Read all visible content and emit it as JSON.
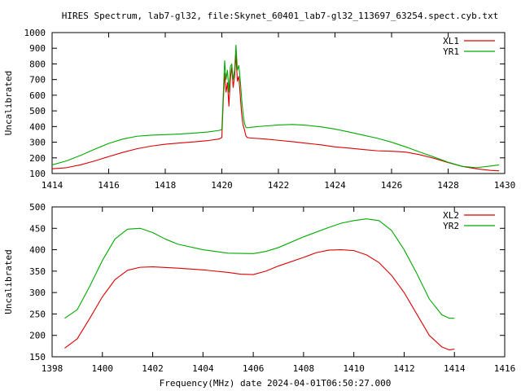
{
  "title": "HIRES Spectrum, lab7-gl32, file:Skynet_60401_lab7-gl32_113697_63254.spect.cyb.txt",
  "footer_label": "Frequency(MHz) date 2024-04-01T06:50:27.000",
  "colors": {
    "red": "#dd0000",
    "green": "#00aa00",
    "axis": "#000000"
  },
  "chart_data": [
    {
      "type": "line",
      "ylabel": "Uncalibrated",
      "xlim": [
        1414,
        1430
      ],
      "ylim": [
        100,
        1000
      ],
      "x_ticks": [
        "1414",
        "1416",
        "1418",
        "1420",
        "1422",
        "1424",
        "1426",
        "1428",
        "1430"
      ],
      "y_ticks": [
        "100",
        "200",
        "300",
        "400",
        "500",
        "600",
        "700",
        "800",
        "900",
        "1000"
      ],
      "legend_position": "top-right",
      "series": [
        {
          "name": "XL1",
          "color": "red",
          "points": [
            [
              1414.0,
              130
            ],
            [
              1414.5,
              137
            ],
            [
              1415.0,
              155
            ],
            [
              1415.5,
              180
            ],
            [
              1416.0,
              208
            ],
            [
              1416.5,
              235
            ],
            [
              1417.0,
              258
            ],
            [
              1417.5,
              275
            ],
            [
              1418.0,
              287
            ],
            [
              1418.5,
              295
            ],
            [
              1419.0,
              302
            ],
            [
              1419.5,
              310
            ],
            [
              1419.9,
              320
            ],
            [
              1420.0,
              330
            ],
            [
              1420.05,
              560
            ],
            [
              1420.1,
              740
            ],
            [
              1420.15,
              620
            ],
            [
              1420.2,
              680
            ],
            [
              1420.25,
              530
            ],
            [
              1420.3,
              700
            ],
            [
              1420.35,
              780
            ],
            [
              1420.4,
              650
            ],
            [
              1420.45,
              720
            ],
            [
              1420.5,
              860
            ],
            [
              1420.55,
              690
            ],
            [
              1420.6,
              720
            ],
            [
              1420.65,
              600
            ],
            [
              1420.7,
              480
            ],
            [
              1420.75,
              410
            ],
            [
              1420.8,
              380
            ],
            [
              1420.85,
              340
            ],
            [
              1420.9,
              330
            ],
            [
              1421.0,
              327
            ],
            [
              1421.5,
              321
            ],
            [
              1422.0,
              312
            ],
            [
              1422.5,
              303
            ],
            [
              1423.0,
              293
            ],
            [
              1423.5,
              283
            ],
            [
              1424.0,
              270
            ],
            [
              1424.5,
              262
            ],
            [
              1425.0,
              253
            ],
            [
              1425.5,
              245
            ],
            [
              1426.0,
              242
            ],
            [
              1426.5,
              237
            ],
            [
              1427.0,
              220
            ],
            [
              1427.5,
              197
            ],
            [
              1428.0,
              170
            ],
            [
              1428.5,
              145
            ],
            [
              1429.0,
              130
            ],
            [
              1429.5,
              120
            ],
            [
              1429.8,
              117
            ]
          ]
        },
        {
          "name": "YR1",
          "color": "green",
          "points": [
            [
              1414.0,
              155
            ],
            [
              1414.5,
              180
            ],
            [
              1415.0,
              215
            ],
            [
              1415.5,
              255
            ],
            [
              1416.0,
              292
            ],
            [
              1416.5,
              320
            ],
            [
              1417.0,
              338
            ],
            [
              1417.5,
              345
            ],
            [
              1418.0,
              348
            ],
            [
              1418.5,
              352
            ],
            [
              1419.0,
              358
            ],
            [
              1419.5,
              365
            ],
            [
              1419.9,
              375
            ],
            [
              1420.0,
              380
            ],
            [
              1420.05,
              600
            ],
            [
              1420.1,
              820
            ],
            [
              1420.15,
              700
            ],
            [
              1420.2,
              760
            ],
            [
              1420.25,
              620
            ],
            [
              1420.3,
              780
            ],
            [
              1420.35,
              800
            ],
            [
              1420.4,
              700
            ],
            [
              1420.45,
              760
            ],
            [
              1420.5,
              920
            ],
            [
              1420.55,
              760
            ],
            [
              1420.6,
              790
            ],
            [
              1420.65,
              700
            ],
            [
              1420.7,
              580
            ],
            [
              1420.75,
              480
            ],
            [
              1420.8,
              420
            ],
            [
              1420.85,
              395
            ],
            [
              1420.9,
              392
            ],
            [
              1421.0,
              395
            ],
            [
              1421.5,
              403
            ],
            [
              1422.0,
              410
            ],
            [
              1422.5,
              413
            ],
            [
              1423.0,
              408
            ],
            [
              1423.5,
              398
            ],
            [
              1424.0,
              384
            ],
            [
              1424.5,
              365
            ],
            [
              1425.0,
              345
            ],
            [
              1425.5,
              325
            ],
            [
              1426.0,
              300
            ],
            [
              1426.5,
              270
            ],
            [
              1427.0,
              237
            ],
            [
              1427.5,
              205
            ],
            [
              1428.0,
              172
            ],
            [
              1428.5,
              146
            ],
            [
              1429.0,
              137
            ],
            [
              1429.5,
              148
            ],
            [
              1429.8,
              155
            ]
          ]
        }
      ]
    },
    {
      "type": "line",
      "ylabel": "Uncalibrated",
      "xlim": [
        1398,
        1416
      ],
      "ylim": [
        150,
        500
      ],
      "x_ticks": [
        "1398",
        "1400",
        "1402",
        "1404",
        "1406",
        "1408",
        "1410",
        "1412",
        "1414",
        "1416"
      ],
      "y_ticks": [
        "150",
        "200",
        "250",
        "300",
        "350",
        "400",
        "450",
        "500"
      ],
      "legend_position": "top-right",
      "series": [
        {
          "name": "XL2",
          "color": "red",
          "points": [
            [
              1398.5,
              170
            ],
            [
              1399.0,
              192
            ],
            [
              1399.5,
              240
            ],
            [
              1400.0,
              290
            ],
            [
              1400.5,
              330
            ],
            [
              1401.0,
              352
            ],
            [
              1401.5,
              359
            ],
            [
              1402.0,
              360
            ],
            [
              1403.0,
              357
            ],
            [
              1404.0,
              353
            ],
            [
              1405.0,
              347
            ],
            [
              1405.5,
              343
            ],
            [
              1406.0,
              342
            ],
            [
              1406.5,
              350
            ],
            [
              1407.0,
              362
            ],
            [
              1408.0,
              382
            ],
            [
              1408.5,
              393
            ],
            [
              1409.0,
              399
            ],
            [
              1409.5,
              400
            ],
            [
              1410.0,
              398
            ],
            [
              1410.5,
              388
            ],
            [
              1411.0,
              370
            ],
            [
              1411.5,
              340
            ],
            [
              1412.0,
              300
            ],
            [
              1412.5,
              250
            ],
            [
              1413.0,
              200
            ],
            [
              1413.5,
              173
            ],
            [
              1413.8,
              166
            ],
            [
              1414.0,
              168
            ]
          ]
        },
        {
          "name": "YR2",
          "color": "green",
          "points": [
            [
              1398.5,
              240
            ],
            [
              1399.0,
              260
            ],
            [
              1399.5,
              315
            ],
            [
              1400.0,
              375
            ],
            [
              1400.5,
              425
            ],
            [
              1401.0,
              448
            ],
            [
              1401.5,
              450
            ],
            [
              1402.0,
              440
            ],
            [
              1402.5,
              425
            ],
            [
              1403.0,
              413
            ],
            [
              1404.0,
              400
            ],
            [
              1405.0,
              392
            ],
            [
              1406.0,
              391
            ],
            [
              1406.5,
              396
            ],
            [
              1407.0,
              405
            ],
            [
              1408.0,
              430
            ],
            [
              1409.0,
              452
            ],
            [
              1409.5,
              462
            ],
            [
              1410.0,
              468
            ],
            [
              1410.5,
              472
            ],
            [
              1411.0,
              468
            ],
            [
              1411.5,
              445
            ],
            [
              1412.0,
              400
            ],
            [
              1412.5,
              345
            ],
            [
              1413.0,
              285
            ],
            [
              1413.5,
              248
            ],
            [
              1413.8,
              240
            ],
            [
              1414.0,
              240
            ]
          ]
        }
      ]
    }
  ]
}
